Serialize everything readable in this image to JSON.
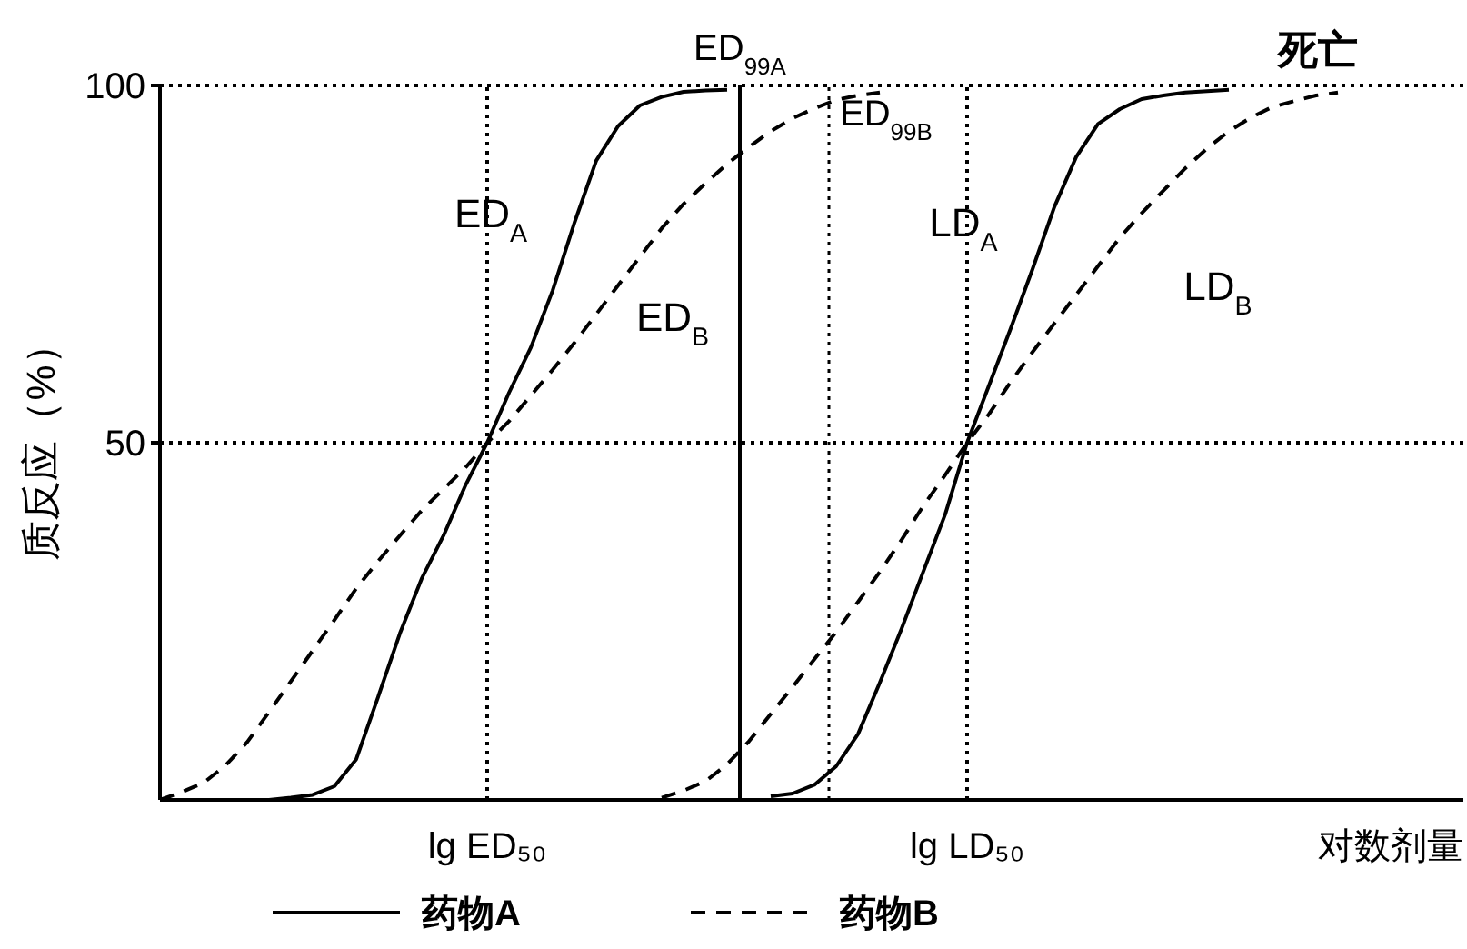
{
  "chart_data": {
    "type": "line",
    "ylabel": "质反应（%）",
    "xlabel": "对数剂量",
    "categories": [
      null,
      null,
      null,
      null,
      null,
      null,
      null,
      null,
      null,
      null,
      null,
      null,
      null,
      null,
      null,
      "lg ED₅₀",
      null,
      null,
      null,
      null,
      null,
      null,
      null,
      null,
      null,
      null,
      null,
      null,
      null,
      null,
      null,
      null,
      null,
      null,
      null,
      null,
      null,
      "lg LD₅₀",
      null,
      null,
      null,
      null,
      null,
      null,
      null,
      null,
      null,
      null,
      null,
      null,
      null,
      null,
      null,
      null,
      null,
      null,
      null,
      null,
      null,
      null
    ],
    "ylim": [
      0,
      100
    ],
    "yticks": [
      50,
      100
    ],
    "legend": "bottom",
    "series": [
      {
        "name": "药物A",
        "color": "#000000",
        "line_style": "solid",
        "values": [
          null,
          null,
          null,
          null,
          null,
          0,
          0.3,
          0.7,
          1.9,
          5.7,
          14.4,
          23.3,
          31,
          37,
          44,
          50,
          57,
          63.3,
          71.3,
          80.8,
          89.5,
          94.3,
          97.2,
          98.4,
          99.1,
          99.3,
          99.4,
          null,
          0.5,
          0.9,
          2.1,
          4.7,
          9.2,
          16.4,
          24,
          32,
          40,
          50,
          58,
          66,
          74.3,
          83,
          90,
          94.6,
          96.7,
          98.1,
          98.6,
          99,
          99.2,
          99.4,
          null,
          null,
          null,
          null,
          null,
          null,
          null,
          null,
          null,
          null
        ]
      },
      {
        "name": "药物B",
        "color": "#000000",
        "line_style": "dashed",
        "values": [
          0,
          1.1,
          2.4,
          4.8,
          8.1,
          12.3,
          16.6,
          20.9,
          25.2,
          29.6,
          33.4,
          37,
          40.5,
          43.5,
          46.5,
          50,
          53,
          56.6,
          60.2,
          64,
          68,
          72,
          76,
          80,
          83.4,
          86.3,
          89,
          91.4,
          93.6,
          95.4,
          96.8,
          98,
          98.6,
          99,
          null,
          null,
          null,
          null,
          null,
          null,
          null,
          null,
          null,
          null,
          null,
          null,
          null,
          null,
          null,
          null,
          null,
          null,
          null,
          null,
          null,
          null,
          null,
          null,
          null,
          null
        ]
      },
      {
        "color": "#000000",
        "line_style": "dashed",
        "values": [
          null,
          null,
          null,
          null,
          null,
          null,
          null,
          null,
          null,
          null,
          null,
          null,
          null,
          null,
          null,
          null,
          null,
          null,
          null,
          null,
          null,
          null,
          null,
          0.3,
          1.3,
          2.6,
          5,
          8.2,
          12,
          15.8,
          19.7,
          23.5,
          27.7,
          31.9,
          36.4,
          41.2,
          45.5,
          50,
          54,
          58.5,
          62.7,
          66.7,
          70.7,
          74.7,
          78.7,
          82.1,
          85.3,
          88.4,
          91.2,
          93.6,
          95.5,
          97,
          97.8,
          98.6,
          99,
          null,
          null,
          null,
          null,
          null
        ]
      }
    ],
    "ref_lines": [
      {
        "axis": "y",
        "value": 50,
        "line_style": "dotted",
        "color": "#000000"
      },
      {
        "axis": "x",
        "value": "lg ED₅₀",
        "line_style": "dotted",
        "color": "#000000"
      },
      {
        "axis": "x",
        "value": "lg LD₅₀",
        "line_style": "dotted",
        "color": "#000000"
      }
    ],
    "annotations": [
      "ED$_{A}$",
      "ED$_{B}$",
      "LD$_{A}$",
      "LD$_{B}$",
      "死亡",
      "ED$_{99A}$",
      "ED$_{99B}$"
    ]
  }
}
